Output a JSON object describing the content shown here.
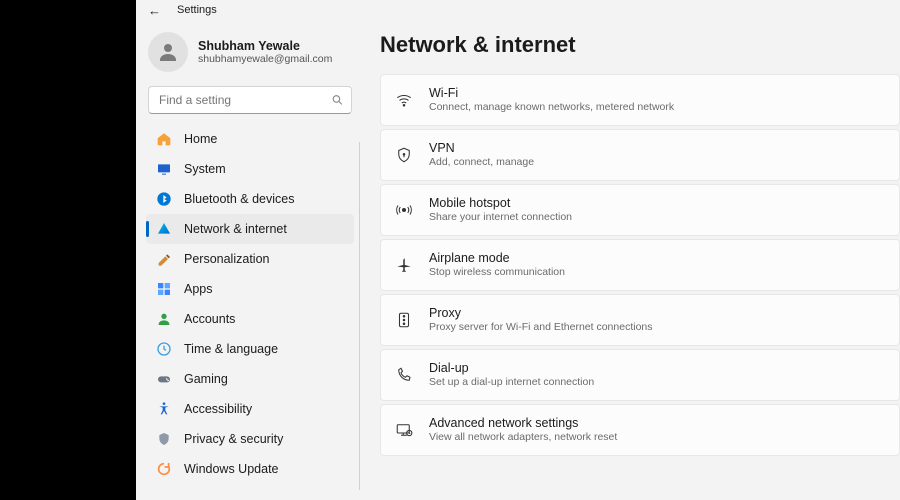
{
  "app_title": "Settings",
  "profile": {
    "name": "Shubham Yewale",
    "email": "shubhamyewale@gmail.com"
  },
  "search": {
    "placeholder": "Find a setting"
  },
  "nav": [
    {
      "id": "home",
      "label": "Home"
    },
    {
      "id": "system",
      "label": "System"
    },
    {
      "id": "bluetooth",
      "label": "Bluetooth & devices"
    },
    {
      "id": "network",
      "label": "Network & internet",
      "selected": true
    },
    {
      "id": "personalization",
      "label": "Personalization"
    },
    {
      "id": "apps",
      "label": "Apps"
    },
    {
      "id": "accounts",
      "label": "Accounts"
    },
    {
      "id": "time",
      "label": "Time & language"
    },
    {
      "id": "gaming",
      "label": "Gaming"
    },
    {
      "id": "accessibility",
      "label": "Accessibility"
    },
    {
      "id": "privacy",
      "label": "Privacy & security"
    },
    {
      "id": "update",
      "label": "Windows Update"
    }
  ],
  "page": {
    "title": "Network & internet",
    "cards": [
      {
        "id": "wifi",
        "title": "Wi-Fi",
        "sub": "Connect, manage known networks, metered network"
      },
      {
        "id": "vpn",
        "title": "VPN",
        "sub": "Add, connect, manage"
      },
      {
        "id": "hotspot",
        "title": "Mobile hotspot",
        "sub": "Share your internet connection"
      },
      {
        "id": "airplane",
        "title": "Airplane mode",
        "sub": "Stop wireless communication"
      },
      {
        "id": "proxy",
        "title": "Proxy",
        "sub": "Proxy server for Wi-Fi and Ethernet connections"
      },
      {
        "id": "dialup",
        "title": "Dial-up",
        "sub": "Set up a dial-up internet connection"
      },
      {
        "id": "advanced",
        "title": "Advanced network settings",
        "sub": "View all network adapters, network reset"
      }
    ]
  },
  "colors": {
    "window_bg": "#f3f3f3",
    "card_bg": "#fcfcfc",
    "card_border": "#e7e7e7",
    "accent": "#0067c0"
  }
}
